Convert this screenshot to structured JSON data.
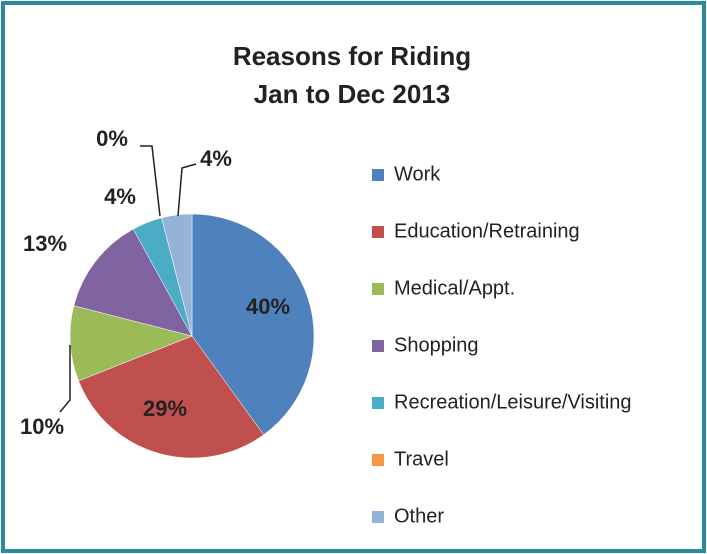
{
  "chart_data": {
    "type": "pie",
    "title": "Reasons for Riding",
    "subtitle": "Jan to Dec 2013",
    "categories": [
      "Work",
      "Education/Retraining",
      "Medical/Appt.",
      "Shopping",
      "Recreation/Leisure/Visiting",
      "Travel",
      "Other"
    ],
    "values": [
      40,
      29,
      10,
      13,
      4,
      0,
      4
    ],
    "value_labels": [
      "40%",
      "29%",
      "10%",
      "13%",
      "4%",
      "0%",
      "4%"
    ],
    "colors": [
      "#4f81bd",
      "#c0504d",
      "#9bbb59",
      "#8064a2",
      "#4bacc6",
      "#f79646",
      "#95b3d7"
    ],
    "legend": "right"
  }
}
